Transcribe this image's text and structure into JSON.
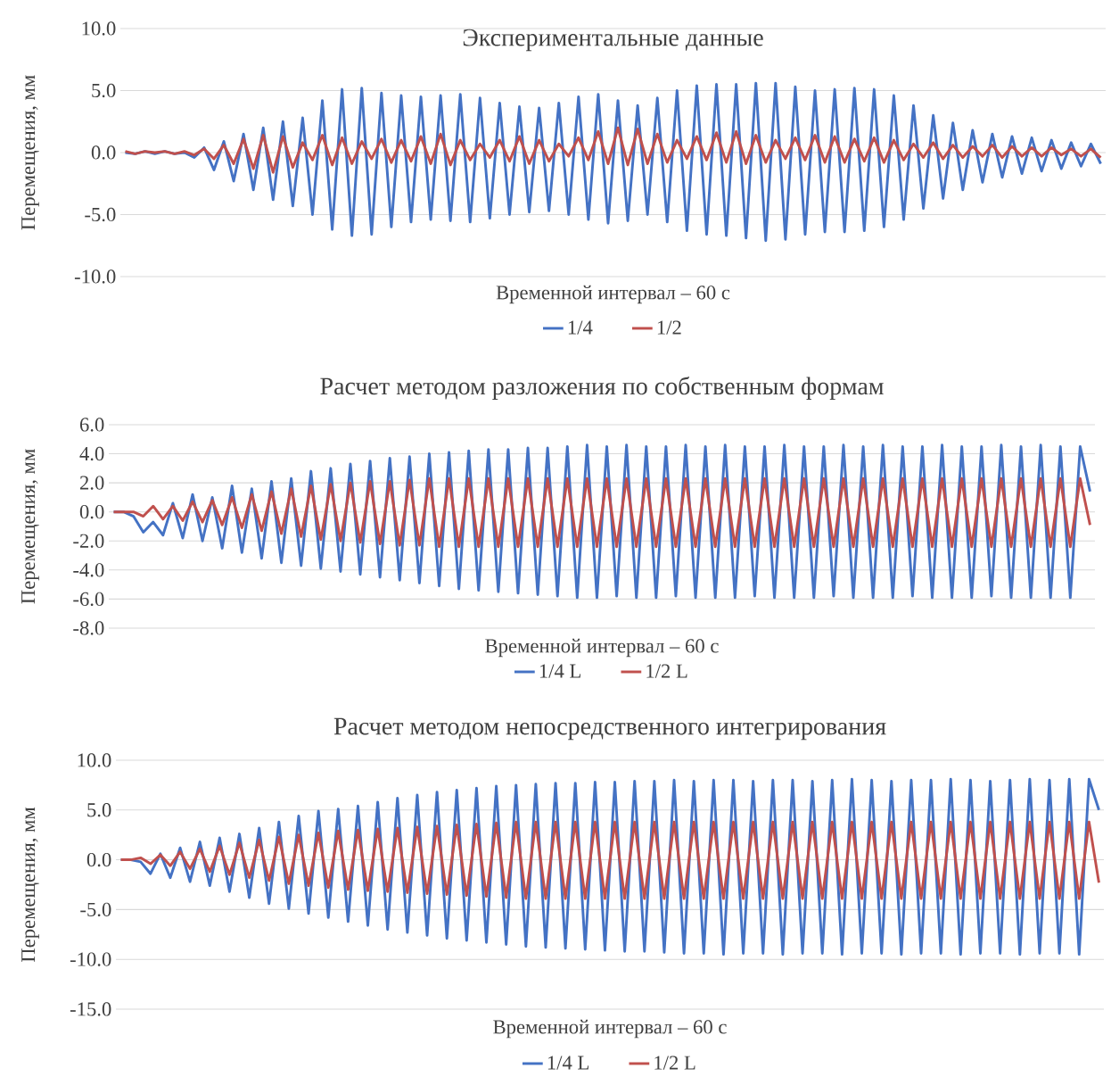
{
  "chart_data": [
    {
      "type": "line",
      "title": "Экспериментальные данные",
      "xlabel": "Временной интервал – 60 с",
      "ylabel": "Перемещения, мм",
      "grid": "y",
      "legend": "bottom",
      "ylim": [
        -10,
        10
      ],
      "yticks": [
        {
          "value": -10,
          "label": "-10.0"
        },
        {
          "value": -5,
          "label": "-5.0"
        },
        {
          "value": 0,
          "label": "0.0"
        },
        {
          "value": 5,
          "label": "5.0"
        },
        {
          "value": 10,
          "label": "10.0"
        }
      ],
      "categories": [
        null,
        null,
        null,
        null,
        null,
        null,
        null,
        null,
        null,
        null,
        null,
        null,
        null,
        null,
        null,
        null,
        null,
        null,
        null,
        null,
        null,
        null,
        null,
        null,
        null,
        null,
        null,
        null,
        null,
        null,
        null,
        null,
        null,
        null,
        null,
        null,
        null,
        null,
        null,
        null,
        null,
        null,
        null,
        null,
        null,
        null,
        null,
        null,
        null,
        null,
        null,
        null,
        null,
        null,
        null,
        null,
        null,
        null,
        null,
        null,
        null,
        null,
        null,
        null,
        null,
        null,
        null,
        null,
        null,
        null,
        null,
        null,
        null,
        null,
        null,
        null,
        null,
        null,
        null,
        null,
        null,
        null,
        null,
        null,
        null,
        null,
        null,
        null,
        null,
        null,
        null,
        null,
        null,
        null,
        null,
        null,
        null,
        null,
        null,
        null
      ],
      "series": [
        {
          "name": "1/4",
          "color": "#4472c4",
          "values": [
            0.0,
            -0.1,
            0.1,
            -0.1,
            0.1,
            -0.1,
            0.0,
            -0.4,
            0.4,
            -1.4,
            0.9,
            -2.3,
            1.5,
            -3.0,
            2.0,
            -3.8,
            2.5,
            -4.3,
            2.8,
            -5.0,
            4.2,
            -6.2,
            5.1,
            -6.7,
            5.2,
            -6.6,
            4.8,
            -6.0,
            4.6,
            -5.6,
            4.5,
            -5.4,
            4.6,
            -5.5,
            4.7,
            -5.6,
            4.4,
            -5.3,
            4.0,
            -5.0,
            3.7,
            -4.8,
            3.6,
            -4.7,
            4.0,
            -5.0,
            4.5,
            -5.4,
            4.7,
            -5.7,
            4.2,
            -5.5,
            3.8,
            -5.0,
            4.4,
            -5.6,
            5.0,
            -6.3,
            5.4,
            -6.6,
            5.5,
            -6.7,
            5.5,
            -6.9,
            5.6,
            -7.1,
            5.6,
            -7.0,
            5.3,
            -6.6,
            5.0,
            -6.4,
            5.1,
            -6.4,
            5.2,
            -6.3,
            5.1,
            -6.0,
            4.6,
            -5.4,
            3.8,
            -4.5,
            3.0,
            -3.7,
            2.4,
            -3.0,
            1.8,
            -2.4,
            1.5,
            -2.0,
            1.3,
            -1.7,
            1.2,
            -1.5,
            1.0,
            -1.3,
            0.8,
            -1.1,
            0.7,
            -0.9
          ]
        },
        {
          "name": "1/2",
          "color": "#c0504d",
          "values": [
            0.1,
            -0.1,
            0.1,
            0.0,
            0.1,
            -0.1,
            0.1,
            -0.2,
            0.3,
            -0.5,
            0.6,
            -0.9,
            1.1,
            -1.3,
            1.4,
            -1.6,
            1.3,
            -1.2,
            0.8,
            -0.6,
            1.4,
            -1.0,
            1.2,
            -0.9,
            0.9,
            -0.5,
            1.1,
            -0.8,
            1.0,
            -0.7,
            1.3,
            -0.9,
            1.5,
            -1.0,
            1.0,
            -0.6,
            0.7,
            -0.4,
            1.0,
            -0.7,
            1.3,
            -0.9,
            1.0,
            -0.7,
            0.7,
            -0.3,
            1.2,
            -0.6,
            1.7,
            -0.9,
            2.0,
            -1.0,
            1.9,
            -0.9,
            1.5,
            -0.8,
            1.0,
            -0.5,
            1.3,
            -0.6,
            1.6,
            -0.8,
            1.7,
            -0.9,
            1.4,
            -0.8,
            1.0,
            -0.5,
            1.2,
            -0.6,
            1.4,
            -0.8,
            1.3,
            -0.8,
            1.1,
            -0.7,
            1.2,
            -0.8,
            1.0,
            -0.6,
            0.7,
            -0.4,
            0.8,
            -0.5,
            0.6,
            -0.4,
            0.5,
            -0.3,
            0.6,
            -0.4,
            0.5,
            -0.3,
            0.4,
            -0.3,
            0.4,
            -0.2,
            0.3,
            -0.3,
            0.3,
            -0.4
          ]
        }
      ]
    },
    {
      "type": "line",
      "title": "Расчет методом разложения по собственным формам",
      "xlabel": "Временной интервал – 60 с",
      "ylabel": "Перемещения, мм",
      "grid": "y",
      "legend": "bottom",
      "ylim": [
        -8,
        6
      ],
      "yticks": [
        {
          "value": -8,
          "label": "-8.0"
        },
        {
          "value": -6,
          "label": "-6.0"
        },
        {
          "value": -4,
          "label": "-4.0"
        },
        {
          "value": -2,
          "label": "-2.0"
        },
        {
          "value": 0,
          "label": "0.0"
        },
        {
          "value": 2,
          "label": "2.0"
        },
        {
          "value": 4,
          "label": "4.0"
        },
        {
          "value": 6,
          "label": "6.0"
        }
      ],
      "categories": [
        null,
        null,
        null,
        null,
        null,
        null,
        null,
        null,
        null,
        null,
        null,
        null,
        null,
        null,
        null,
        null,
        null,
        null,
        null,
        null,
        null,
        null,
        null,
        null,
        null,
        null,
        null,
        null,
        null,
        null,
        null,
        null,
        null,
        null,
        null,
        null,
        null,
        null,
        null,
        null,
        null,
        null,
        null,
        null,
        null,
        null,
        null,
        null,
        null,
        null,
        null,
        null,
        null,
        null,
        null,
        null,
        null,
        null,
        null,
        null,
        null,
        null,
        null,
        null,
        null,
        null,
        null,
        null,
        null,
        null,
        null,
        null,
        null,
        null,
        null,
        null,
        null,
        null,
        null,
        null,
        null,
        null,
        null,
        null,
        null,
        null,
        null,
        null,
        null,
        null,
        null,
        null,
        null,
        null,
        null,
        null,
        null,
        null,
        null,
        null
      ],
      "series": [
        {
          "name": "1/4 L",
          "color": "#4472c4",
          "values": [
            0.0,
            0.0,
            -0.3,
            -1.4,
            -0.7,
            -1.6,
            0.6,
            -1.8,
            1.2,
            -2.0,
            1.0,
            -2.5,
            1.8,
            -2.8,
            1.6,
            -3.2,
            2.1,
            -3.5,
            2.3,
            -3.7,
            2.8,
            -3.9,
            3.0,
            -4.1,
            3.3,
            -4.3,
            3.5,
            -4.5,
            3.7,
            -4.7,
            3.8,
            -4.9,
            4.0,
            -5.1,
            4.1,
            -5.3,
            4.2,
            -5.4,
            4.3,
            -5.5,
            4.3,
            -5.6,
            4.4,
            -5.7,
            4.4,
            -5.8,
            4.5,
            -5.9,
            4.6,
            -5.9,
            4.5,
            -5.8,
            4.6,
            -5.9,
            4.5,
            -5.9,
            4.5,
            -5.8,
            4.6,
            -5.9,
            4.5,
            -5.9,
            4.6,
            -5.9,
            4.5,
            -5.8,
            4.5,
            -5.9,
            4.6,
            -5.9,
            4.5,
            -5.9,
            4.5,
            -5.8,
            4.6,
            -5.9,
            4.5,
            -5.9,
            4.6,
            -5.9,
            4.5,
            -5.8,
            4.5,
            -5.9,
            4.6,
            -5.9,
            4.5,
            -5.9,
            4.5,
            -5.8,
            4.6,
            -5.9,
            4.5,
            -5.9,
            4.6,
            -5.9,
            4.5,
            -5.9,
            4.5,
            1.4
          ]
        },
        {
          "name": "1/2 L",
          "color": "#c0504d",
          "values": [
            0.0,
            0.0,
            0.0,
            -0.3,
            0.4,
            -0.5,
            0.4,
            -0.6,
            0.7,
            -0.7,
            0.8,
            -0.9,
            1.0,
            -1.1,
            1.2,
            -1.3,
            1.4,
            -1.5,
            1.6,
            -1.7,
            1.8,
            -1.9,
            1.9,
            -2.0,
            2.0,
            -2.1,
            2.1,
            -2.2,
            2.1,
            -2.3,
            2.2,
            -2.3,
            2.3,
            -2.4,
            2.3,
            -2.4,
            2.3,
            -2.4,
            2.3,
            -2.4,
            2.3,
            -2.4,
            2.3,
            -2.4,
            2.3,
            -2.4,
            2.3,
            -2.4,
            2.3,
            -2.4,
            2.3,
            -2.4,
            2.3,
            -2.4,
            2.3,
            -2.4,
            2.3,
            -2.4,
            2.3,
            -2.4,
            2.3,
            -2.4,
            2.3,
            -2.4,
            2.3,
            -2.4,
            2.3,
            -2.4,
            2.3,
            -2.4,
            2.3,
            -2.4,
            2.3,
            -2.4,
            2.3,
            -2.4,
            2.3,
            -2.4,
            2.3,
            -2.4,
            2.3,
            -2.4,
            2.3,
            -2.4,
            2.3,
            -2.4,
            2.3,
            -2.4,
            2.3,
            -2.4,
            2.3,
            -2.4,
            2.3,
            -2.4,
            2.3,
            -2.4,
            2.3,
            -2.4,
            2.3,
            -0.9
          ]
        }
      ]
    },
    {
      "type": "line",
      "title": "Расчет методом непосредственного интегрирования",
      "xlabel": "Временной интервал – 60 с",
      "ylabel": "Перемещения, мм",
      "grid": "y",
      "legend": "bottom",
      "ylim": [
        -15,
        10
      ],
      "yticks": [
        {
          "value": -15,
          "label": "-15.0"
        },
        {
          "value": -10,
          "label": "-10.0"
        },
        {
          "value": -5,
          "label": "-5.0"
        },
        {
          "value": 0,
          "label": "0.0"
        },
        {
          "value": 5,
          "label": "5.0"
        },
        {
          "value": 10,
          "label": "10.0"
        }
      ],
      "categories": [
        null,
        null,
        null,
        null,
        null,
        null,
        null,
        null,
        null,
        null,
        null,
        null,
        null,
        null,
        null,
        null,
        null,
        null,
        null,
        null,
        null,
        null,
        null,
        null,
        null,
        null,
        null,
        null,
        null,
        null,
        null,
        null,
        null,
        null,
        null,
        null,
        null,
        null,
        null,
        null,
        null,
        null,
        null,
        null,
        null,
        null,
        null,
        null,
        null,
        null,
        null,
        null,
        null,
        null,
        null,
        null,
        null,
        null,
        null,
        null,
        null,
        null,
        null,
        null,
        null,
        null,
        null,
        null,
        null,
        null,
        null,
        null,
        null,
        null,
        null,
        null,
        null,
        null,
        null,
        null,
        null,
        null,
        null,
        null,
        null,
        null,
        null,
        null,
        null,
        null,
        null,
        null,
        null,
        null,
        null,
        null,
        null,
        null,
        null,
        null
      ],
      "series": [
        {
          "name": "1/4 L",
          "color": "#4472c4",
          "values": [
            0.0,
            0.0,
            -0.2,
            -1.4,
            0.6,
            -1.8,
            1.2,
            -2.2,
            1.8,
            -2.6,
            2.2,
            -3.2,
            2.6,
            -3.8,
            3.2,
            -4.4,
            3.8,
            -4.9,
            4.4,
            -5.4,
            4.9,
            -5.8,
            5.1,
            -6.2,
            5.4,
            -6.6,
            5.8,
            -7.0,
            6.2,
            -7.3,
            6.5,
            -7.6,
            6.8,
            -7.9,
            7.0,
            -8.1,
            7.2,
            -8.3,
            7.4,
            -8.5,
            7.5,
            -8.7,
            7.6,
            -8.8,
            7.7,
            -8.9,
            7.7,
            -9.0,
            7.8,
            -9.1,
            7.8,
            -9.2,
            7.9,
            -9.2,
            7.9,
            -9.3,
            8.0,
            -9.4,
            7.9,
            -9.4,
            8.0,
            -9.5,
            8.0,
            -9.4,
            7.9,
            -9.4,
            8.0,
            -9.5,
            8.0,
            -9.4,
            7.9,
            -9.4,
            8.0,
            -9.5,
            8.1,
            -9.4,
            8.0,
            -9.4,
            7.9,
            -9.5,
            8.0,
            -9.4,
            8.0,
            -9.4,
            8.1,
            -9.5,
            8.0,
            -9.4,
            7.9,
            -9.4,
            8.0,
            -9.5,
            8.1,
            -9.4,
            8.0,
            -9.4,
            8.1,
            -9.5,
            8.1,
            5.0
          ]
        },
        {
          "name": "1/2 L",
          "color": "#c0504d",
          "values": [
            0.0,
            0.0,
            0.2,
            -0.4,
            0.5,
            -0.6,
            0.8,
            -0.9,
            1.1,
            -1.2,
            1.4,
            -1.5,
            1.7,
            -1.8,
            2.0,
            -2.1,
            2.3,
            -2.4,
            2.5,
            -2.6,
            2.7,
            -2.8,
            2.9,
            -3.0,
            3.0,
            -3.1,
            3.1,
            -3.2,
            3.2,
            -3.3,
            3.3,
            -3.4,
            3.4,
            -3.5,
            3.5,
            -3.6,
            3.6,
            -3.7,
            3.7,
            -3.8,
            3.8,
            -3.9,
            3.8,
            -3.9,
            3.8,
            -3.9,
            3.8,
            -3.9,
            3.8,
            -3.9,
            3.8,
            -3.9,
            3.8,
            -3.9,
            3.8,
            -3.9,
            3.8,
            -3.9,
            3.8,
            -3.9,
            3.8,
            -3.9,
            3.8,
            -3.9,
            3.8,
            -3.9,
            3.8,
            -3.9,
            3.8,
            -3.9,
            3.8,
            -3.9,
            3.8,
            -3.9,
            3.8,
            -3.9,
            3.8,
            -3.9,
            3.8,
            -3.9,
            3.8,
            -3.9,
            3.8,
            -3.9,
            3.8,
            -3.9,
            3.8,
            -3.9,
            3.8,
            -3.9,
            3.8,
            -3.9,
            3.8,
            -3.9,
            3.8,
            -3.9,
            3.8,
            -3.9,
            3.8,
            -2.3
          ]
        }
      ]
    }
  ]
}
